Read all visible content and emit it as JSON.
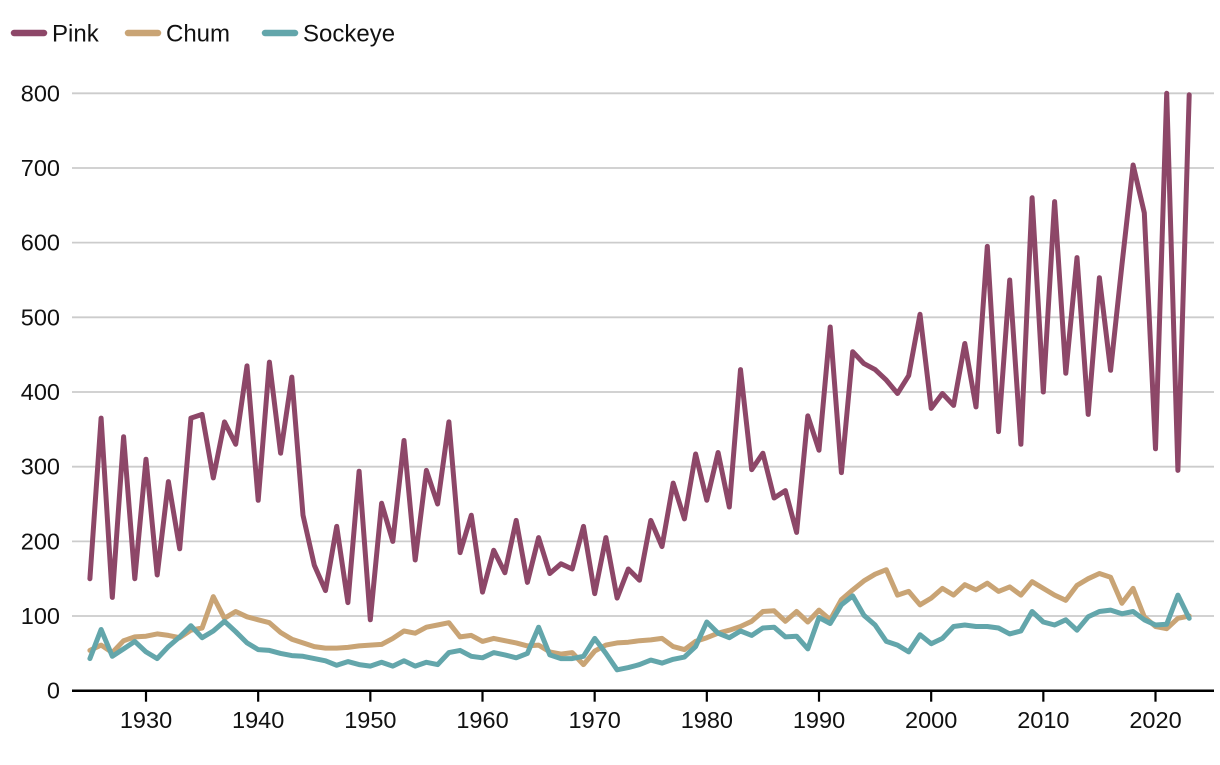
{
  "chart_data": {
    "type": "line",
    "title": "",
    "xlabel": "",
    "ylabel": "",
    "x_start": 1925,
    "x_end": 2023,
    "ylim": [
      0,
      800
    ],
    "yticks": [
      0,
      100,
      200,
      300,
      400,
      500,
      600,
      700,
      800
    ],
    "xticks": [
      1930,
      1940,
      1950,
      1960,
      1970,
      1980,
      1990,
      2000,
      2010,
      2020
    ],
    "grid": "horizontal",
    "legend_position": "top-left",
    "series": [
      {
        "name": "Pink",
        "color": "#8d4768",
        "values": [
          150,
          365,
          125,
          340,
          150,
          310,
          155,
          280,
          190,
          365,
          370,
          285,
          360,
          330,
          435,
          255,
          440,
          318,
          420,
          235,
          168,
          134,
          220,
          118,
          294,
          95,
          251,
          200,
          335,
          175,
          295,
          250,
          360,
          185,
          235,
          132,
          188,
          158,
          228,
          145,
          205,
          157,
          170,
          163,
          220,
          130,
          205,
          124,
          163,
          148,
          228,
          193,
          278,
          230,
          317,
          255,
          319,
          246,
          430,
          296,
          318,
          258,
          268,
          212,
          368,
          322,
          487,
          292,
          454,
          438,
          430,
          416,
          398,
          422,
          504,
          378,
          398,
          382,
          465,
          380,
          595,
          347,
          550,
          330,
          660,
          400,
          655,
          425,
          580,
          370,
          553,
          429,
          570,
          704,
          640,
          324,
          800,
          295,
          798
        ]
      },
      {
        "name": "Chum",
        "color": "#c9a475",
        "values": [
          54,
          61,
          51,
          67,
          72,
          73,
          76,
          74,
          71,
          81,
          84,
          126,
          97,
          106,
          99,
          95,
          91,
          78,
          69,
          64,
          59,
          57,
          57,
          58,
          60,
          61,
          62,
          70,
          80,
          77,
          85,
          88,
          91,
          72,
          74,
          66,
          70,
          67,
          64,
          60,
          61,
          52,
          49,
          51,
          35,
          53,
          61,
          64,
          65,
          67,
          68,
          70,
          59,
          55,
          66,
          71,
          77,
          81,
          86,
          93,
          106,
          107,
          93,
          106,
          92,
          108,
          95,
          122,
          135,
          147,
          156,
          162,
          128,
          133,
          115,
          124,
          137,
          128,
          142,
          135,
          144,
          133,
          139,
          128,
          146,
          137,
          128,
          121,
          141,
          150,
          157,
          152,
          117,
          137,
          99,
          86,
          83,
          97,
          100
        ]
      },
      {
        "name": "Sockeye",
        "color": "#63a6ab",
        "values": [
          43,
          82,
          46,
          56,
          66,
          52,
          43,
          59,
          72,
          87,
          71,
          80,
          93,
          79,
          64,
          55,
          54,
          50,
          47,
          46,
          43,
          40,
          34,
          39,
          35,
          33,
          38,
          33,
          40,
          33,
          38,
          35,
          51,
          54,
          46,
          44,
          51,
          48,
          44,
          50,
          85,
          48,
          43,
          43,
          46,
          70,
          50,
          28,
          31,
          35,
          41,
          37,
          42,
          45,
          59,
          92,
          77,
          71,
          80,
          74,
          84,
          85,
          72,
          73,
          56,
          98,
          90,
          115,
          127,
          101,
          88,
          66,
          61,
          52,
          75,
          63,
          70,
          86,
          88,
          86,
          86,
          84,
          76,
          80,
          106,
          92,
          88,
          95,
          81,
          99,
          106,
          108,
          103,
          106,
          95,
          88,
          89,
          128,
          97
        ]
      }
    ]
  },
  "styles": {
    "background": "#ffffff",
    "text_color": "#111111",
    "grid_color": "#cccccc",
    "axis_color": "#000000"
  }
}
